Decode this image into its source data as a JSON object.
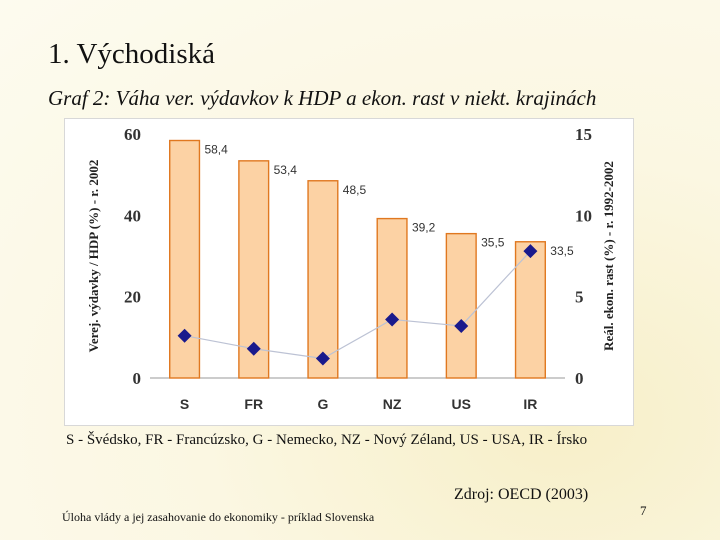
{
  "slide": {
    "title": "1. Východiská",
    "subtitle": "Graf 2: Váha ver. výdavkov k HDP a ekon. rast v niekt. krajinách",
    "legend": "S - Švédsko, FR - Francúzsko, G - Nemecko, NZ - Nový Zéland, US - USA, IR - Írsko",
    "source": "Zdroj: OECD (2003)",
    "footer": "Úloha vlády a jej zasahovanie do ekonomiky - príklad Slovenska",
    "page_number": "7"
  },
  "chart_data": {
    "type": "bar",
    "categories": [
      "S",
      "FR",
      "G",
      "NZ",
      "US",
      "IR"
    ],
    "ylabel": "Verej. výdavky / HDP (%) - r. 2002",
    "y2label": "Reál. ekon. rast (%) - r. 1992-2002",
    "ylim": [
      0,
      60
    ],
    "y2lim": [
      0,
      15
    ],
    "yticks": [
      0,
      20,
      40,
      60
    ],
    "y2ticks": [
      0,
      5,
      10,
      15
    ],
    "series": [
      {
        "type": "bar",
        "axis": "left",
        "values": [
          58.4,
          53.4,
          48.5,
          39.2,
          35.5,
          33.5
        ],
        "labels": [
          "58,4",
          "53,4",
          "48,5",
          "39,2",
          "35,5",
          "33,5"
        ],
        "color": "#fcd2a4",
        "border": "#e07820"
      },
      {
        "type": "line-markers",
        "axis": "right",
        "values": [
          2.6,
          1.8,
          1.2,
          3.6,
          3.2,
          7.8
        ],
        "marker_color": "#1a1a8c",
        "line_color": "#bcc2d4"
      }
    ],
    "grid": false
  }
}
